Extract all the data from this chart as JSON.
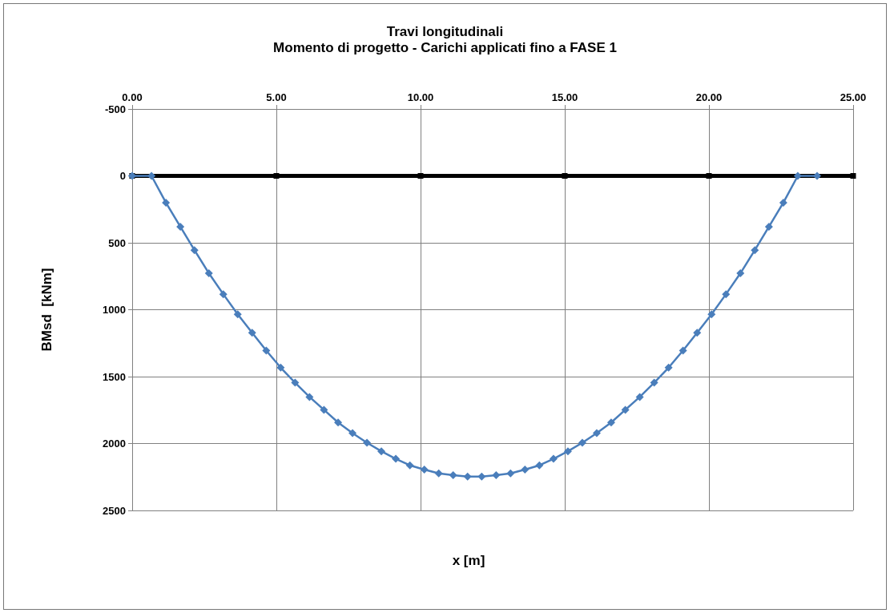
{
  "chart_data": {
    "type": "line",
    "title": "Travi longitudinali",
    "subtitle": "Momento di progetto - Carichi applicati fino a FASE 1",
    "xlabel": "x [m]",
    "ylabel": "BMsd  [kNm]",
    "series": [
      {
        "color": "#000000",
        "marker": "square",
        "x": [
          0,
          5,
          10,
          15,
          20,
          25
        ],
        "values": [
          0,
          0,
          0,
          0,
          0,
          0
        ]
      },
      {
        "color": "#4a7ebb",
        "marker": "diamond",
        "x": [
          0,
          0.67,
          1.17,
          1.67,
          2.16,
          2.66,
          3.16,
          3.66,
          4.16,
          4.65,
          5.15,
          5.65,
          6.15,
          6.65,
          7.14,
          7.64,
          8.14,
          8.64,
          9.14,
          9.63,
          10.13,
          10.63,
          11.13,
          11.63,
          12.12,
          12.62,
          13.12,
          13.62,
          14.12,
          14.61,
          15.11,
          15.61,
          16.11,
          16.61,
          17.1,
          17.6,
          18.1,
          18.6,
          19.1,
          19.59,
          20.09,
          20.59,
          21.09,
          21.59,
          22.08,
          22.58,
          23.08,
          23.75
        ],
        "values": [
          0,
          0,
          200,
          380,
          555,
          728,
          884,
          1034,
          1172,
          1305,
          1433,
          1545,
          1652,
          1748,
          1843,
          1922,
          1994,
          2058,
          2114,
          2163,
          2195,
          2223,
          2237,
          2247,
          2247,
          2237,
          2223,
          2195,
          2163,
          2114,
          2058,
          1994,
          1922,
          1843,
          1748,
          1652,
          1545,
          1433,
          1305,
          1172,
          1034,
          884,
          728,
          555,
          380,
          200,
          0,
          0
        ]
      }
    ],
    "xlim": [
      0,
      25
    ],
    "xticks": [
      {
        "value": 0,
        "label": "0.00"
      },
      {
        "value": 5,
        "label": "5.00"
      },
      {
        "value": 10,
        "label": "10.00"
      },
      {
        "value": 15,
        "label": "15.00"
      },
      {
        "value": 20,
        "label": "20.00"
      },
      {
        "value": 25,
        "label": "25.00"
      }
    ],
    "ylim": [
      2500,
      -500
    ],
    "yticks": [
      -500,
      0,
      500,
      1000,
      1500,
      2000,
      2500
    ],
    "grid": true,
    "line_style": "solid"
  }
}
